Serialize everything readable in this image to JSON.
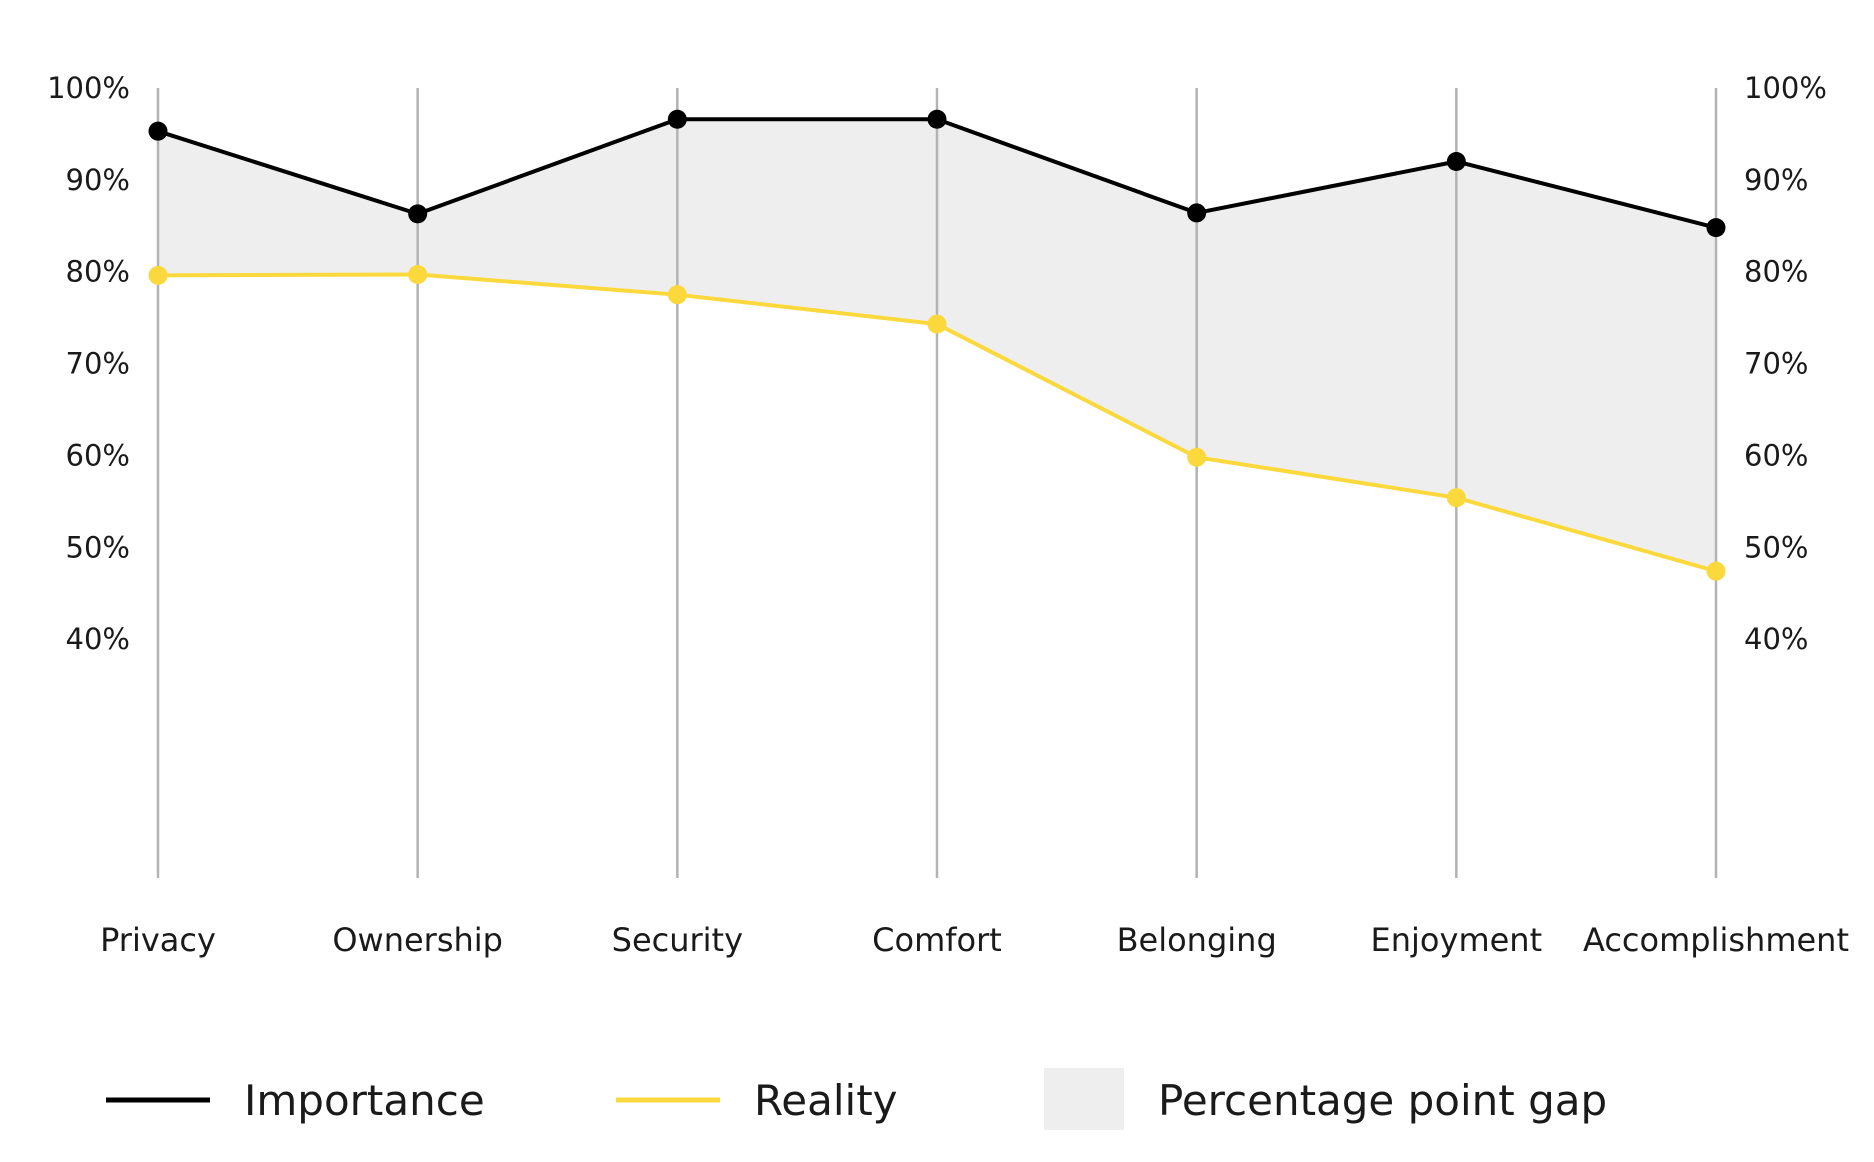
{
  "chart_data": {
    "type": "line",
    "categories": [
      "Privacy",
      "Ownership",
      "Security",
      "Comfort",
      "Belonging",
      "Enjoyment",
      "Accomplishment"
    ],
    "series": [
      {
        "name": "Importance",
        "values": [
          95.3,
          86.3,
          96.6,
          96.6,
          86.4,
          92.0,
          84.8
        ]
      },
      {
        "name": "Reality",
        "values": [
          79.6,
          79.7,
          77.5,
          74.3,
          59.8,
          55.4,
          47.4
        ]
      }
    ],
    "gap_label": "Percentage point gap",
    "yticks": [
      40,
      50,
      60,
      70,
      80,
      90,
      100
    ],
    "ytick_labels": [
      "40%",
      "50%",
      "60%",
      "70%",
      "80%",
      "90%",
      "100%"
    ],
    "ylim": [
      14,
      100
    ],
    "title": "",
    "xlabel": "",
    "ylabel": "",
    "legend_position": "bottom",
    "grid": "vertical category lines",
    "colors": {
      "importance": "#000000",
      "reality": "#fbd93c",
      "gap": "#eeeeee",
      "gridline": "#b3b3b3"
    }
  }
}
